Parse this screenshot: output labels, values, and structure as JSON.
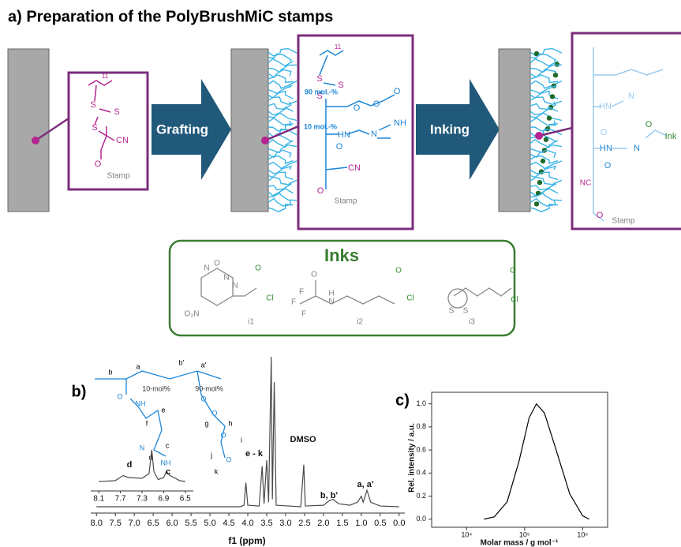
{
  "panel_a": {
    "title": "a) Preparation of the PolyBrushMiC stamps",
    "arrows": [
      "Grafting",
      "Inking"
    ],
    "start_molecule": [
      "11",
      "S",
      "S",
      "S",
      "CN",
      "O",
      "Stamp"
    ],
    "grafted_molecule": [
      "11",
      "S",
      "S",
      "S",
      "90 mol.-%",
      "O",
      "O",
      "O",
      "10 mol.-%",
      "HN",
      "N",
      "NH",
      "O",
      "CN",
      "O",
      "Stamp"
    ],
    "inked_molecule": [
      "HN",
      "N",
      "O",
      "HN",
      "N",
      "O",
      "Ink",
      "O",
      "NC",
      "O",
      "Stamp"
    ],
    "inks": {
      "title": "Inks",
      "labels": [
        "i1",
        "i2",
        "i3"
      ],
      "i1_atoms": [
        "N",
        "O",
        "N",
        "N",
        "O₂N",
        "O",
        "Cl"
      ],
      "i2_atoms": [
        "F",
        "F",
        "F",
        "O",
        "H",
        "N",
        "O",
        "Cl"
      ],
      "i3_atoms": [
        "S",
        "S",
        "O",
        "Cl"
      ]
    }
  },
  "panel_b": {
    "label": "b)",
    "structure": [
      "a",
      "b",
      "b'",
      "a'",
      "10-mol%",
      "90-mol%",
      "O",
      "NH",
      "f",
      "e",
      "N",
      "d",
      "c",
      "NH",
      "O",
      "O",
      "g",
      "h",
      "O",
      "i",
      "j",
      "O",
      "k"
    ]
  },
  "panel_c": {
    "label": "c)"
  },
  "chart_data": [
    {
      "type": "line",
      "x_label": "f1 (ppm)",
      "color": "#4a4a4a",
      "x": [
        8.0,
        4.2,
        4.1,
        4.05,
        4.0,
        3.7,
        3.62,
        3.57,
        3.5,
        3.45,
        3.38,
        3.35,
        3.3,
        3.25,
        2.6,
        2.52,
        2.48,
        2.0,
        1.85,
        1.75,
        1.6,
        1.3,
        1.1,
        1.0,
        0.95,
        0.85,
        0.75,
        0.5,
        0.0
      ],
      "values": [
        0,
        0,
        1,
        16,
        1,
        0.5,
        27,
        2,
        31,
        3,
        100,
        5,
        83,
        1,
        0,
        28,
        0.5,
        1,
        4,
        5,
        2,
        1,
        3,
        7,
        3,
        11,
        3,
        0.5,
        0
      ],
      "xlim": [
        8.15,
        -0.15
      ],
      "ylim": [
        0,
        100
      ],
      "xticks": [
        {
          "value": 8,
          "label": "8.0"
        },
        7.5,
        {
          "value": 7,
          "label": "7.0"
        },
        6.5,
        {
          "value": 6,
          "label": "6.0"
        },
        5.5,
        {
          "value": 5,
          "label": "5.0"
        },
        4.5,
        {
          "value": 4,
          "label": "4.0"
        },
        3.5,
        {
          "value": 3,
          "label": "3.0"
        },
        2.5,
        {
          "value": 2,
          "label": "2.0"
        },
        1.5,
        {
          "value": 1,
          "label": "1.0"
        },
        0.5,
        {
          "value": 0,
          "label": "0.0"
        }
      ],
      "annotations": [
        "e - k",
        "DMSO",
        "b, b'",
        "a, a'"
      ]
    },
    {
      "type": "line",
      "color": "#4a4a4a",
      "x": [
        8.1,
        7.8,
        7.65,
        7.55,
        7.3,
        7.17,
        7.12,
        7.08,
        7.0,
        6.9,
        6.85,
        6.78,
        6.6,
        6.5
      ],
      "values": [
        10,
        12,
        25,
        20,
        18,
        30,
        90,
        35,
        15,
        20,
        35,
        25,
        12,
        10
      ],
      "xlim": [
        8.25,
        6.35
      ],
      "ylim": [
        0,
        100
      ],
      "xticks": [
        8.1,
        7.7,
        7.3,
        6.9,
        6.5
      ],
      "annotations": [
        "d",
        "c"
      ]
    },
    {
      "type": "line",
      "x_label": "Molar mass / g mol⁻¹",
      "y_label": "Rel. intensity / a.u.",
      "color": "#000000",
      "log_x": true,
      "x": [
        20000,
        30000,
        50000,
        80000,
        120000,
        160000,
        220000,
        350000,
        600000,
        1000000,
        1300000
      ],
      "values": [
        0,
        0.02,
        0.15,
        0.5,
        0.88,
        1.0,
        0.92,
        0.6,
        0.22,
        0.03,
        0
      ],
      "xlim": [
        2500,
        2700000
      ],
      "ylim": [
        -0.07,
        1.1
      ],
      "xticks": [
        {
          "value": 10000,
          "label": "10⁴"
        },
        {
          "value": 100000,
          "label": "10⁵"
        },
        {
          "value": 1000000,
          "label": "10⁶"
        }
      ],
      "yticks": [
        {
          "value": 0,
          "label": "0.0"
        },
        0.2,
        0.4,
        0.6,
        0.8,
        {
          "value": 1,
          "label": "1.0"
        }
      ]
    }
  ]
}
